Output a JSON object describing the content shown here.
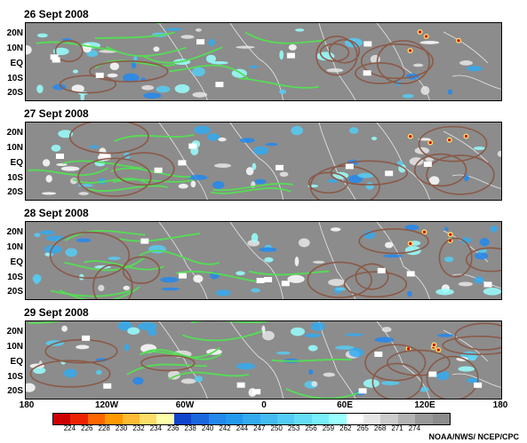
{
  "panels": [
    {
      "date": "26 Sept 2008"
    },
    {
      "date": "27 Sept 2008"
    },
    {
      "date": "28 Sept 2008"
    },
    {
      "date": "29 Sept 2008"
    }
  ],
  "latitude_labels": [
    "20N",
    "10N",
    "EQ",
    "10S",
    "20S"
  ],
  "longitude_labels": [
    "180",
    "120W",
    "60W",
    "0",
    "60E",
    "120E",
    "180"
  ],
  "legend": {
    "colors": [
      "#cc0000",
      "#ee2200",
      "#ff6600",
      "#ff9900",
      "#ffbb33",
      "#ffdd66",
      "#ffffaa",
      "#1144cc",
      "#1a66dd",
      "#2288ee",
      "#2299ee",
      "#33aaf0",
      "#44bbf0",
      "#55ccf5",
      "#66ddf8",
      "#77eefa",
      "#99ffff",
      "#ffffff",
      "#e6e6e6",
      "#cccccc",
      "#b3b3b3",
      "#999999",
      "#8c8c8c"
    ],
    "labels": [
      "224",
      "226",
      "228",
      "230",
      "232",
      "234",
      "236",
      "238",
      "240",
      "242",
      "244",
      "247",
      "250",
      "253",
      "256",
      "259",
      "262",
      "265",
      "268",
      "271",
      "274"
    ]
  },
  "credit": "NOAA/NWS/ NCEP/CPC"
}
